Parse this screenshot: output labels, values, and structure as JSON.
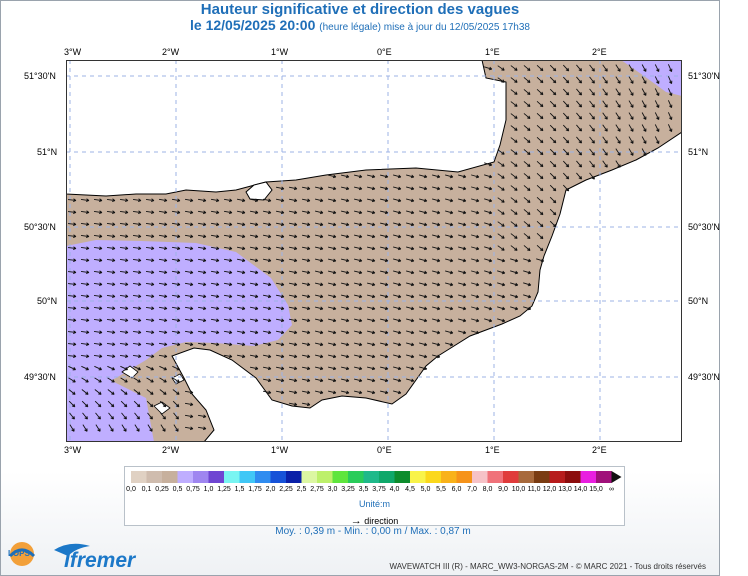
{
  "header": {
    "title": "Hauteur significative et direction des vagues",
    "date": "le 12/05/2025 20:00",
    "subtitle": "(heure légale) mise à jour du 12/05/2025 17h38"
  },
  "map": {
    "lon_labels": [
      "3°W",
      "2°W",
      "1°W",
      "0°E",
      "1°E",
      "2°E"
    ],
    "lat_labels": [
      "51°30'N",
      "51°N",
      "50°30'N",
      "50°N",
      "49°30'N"
    ],
    "colors": {
      "sea_low": "#c7b09d",
      "sea_mid": "#bfaeff",
      "land": "#ffffff",
      "grid": "#9db3e6",
      "arrow": "#111111"
    }
  },
  "legend": {
    "labels": [
      "0,0",
      "0,1",
      "0,25",
      "0,5",
      "0,75",
      "1,0",
      "1,25",
      "1,5",
      "1,75",
      "2,0",
      "2,25",
      "2,5",
      "2,75",
      "3,0",
      "3,25",
      "3,5",
      "3,75",
      "4,0",
      "4,5",
      "5,0",
      "5,5",
      "6,0",
      "7,0",
      "8,0",
      "9,0",
      "10,0",
      "11,0",
      "12,0",
      "13,0",
      "14,0",
      "15,0",
      "∞"
    ],
    "colors": [
      "#e0d1c3",
      "#cfbcae",
      "#c7b09d",
      "#bfaeff",
      "#9f86f0",
      "#6f46d2",
      "#79f5f2",
      "#40c7f6",
      "#2f8cf0",
      "#1652d8",
      "#0a20a8",
      "#dcf7a2",
      "#bdf06b",
      "#5fe53d",
      "#29cc5a",
      "#1fb98a",
      "#0fa86a",
      "#0d8c2d",
      "#f9f34a",
      "#fbd81c",
      "#f9b21a",
      "#f6931a",
      "#f6c2c7",
      "#f0727a",
      "#e03b3b",
      "#a86a3c",
      "#7a3c12",
      "#b71c1c",
      "#8c0d0d",
      "#e91ee0",
      "#a0107a"
    ],
    "unit": "Unité:m",
    "direction_label": "direction"
  },
  "stats": "Moy. : 0,39 m  -  Min. : 0,00 m / Max. : 0,87 m",
  "footer": "WAVEWATCH III (R) - MARC_WW3-NORGAS-2M - © MARC 2021 - Tous droits réservés",
  "logos": {
    "lops": "LOPS",
    "ifremer": "Ifremer"
  }
}
